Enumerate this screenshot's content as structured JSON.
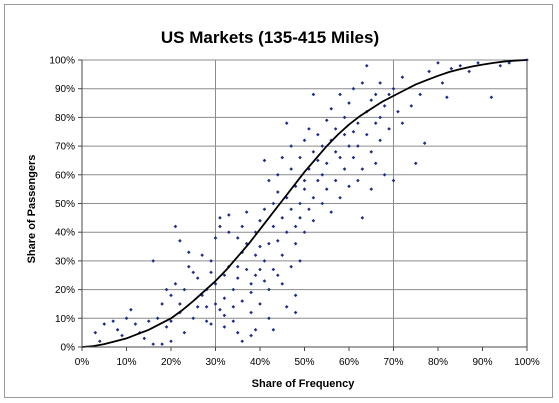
{
  "chart_data": {
    "type": "scatter",
    "title": "US Markets (135-415 Miles)",
    "xlabel": "Share of Frequency",
    "ylabel": "Share of Passengers",
    "xlim": [
      0,
      100
    ],
    "ylim": [
      0,
      100
    ],
    "x_ticks": [
      "0%",
      "10%",
      "20%",
      "30%",
      "40%",
      "50%",
      "60%",
      "70%",
      "80%",
      "90%",
      "100%"
    ],
    "y_ticks": [
      "0%",
      "10%",
      "20%",
      "30%",
      "40%",
      "50%",
      "60%",
      "70%",
      "80%",
      "90%",
      "100%"
    ],
    "grid": "horizontal lines at every 10%, vertical lines at 30% and 70%",
    "legend": "none",
    "colors": {
      "points": "#1f2d8a",
      "curve": "#000000",
      "grid": "#8c8c8c"
    },
    "series": [
      {
        "type": "scatter",
        "points": [
          [
            3,
            5
          ],
          [
            4,
            2
          ],
          [
            5,
            8
          ],
          [
            7,
            9
          ],
          [
            8,
            6
          ],
          [
            9,
            4
          ],
          [
            10,
            10
          ],
          [
            11,
            13
          ],
          [
            12,
            8
          ],
          [
            13,
            5
          ],
          [
            14,
            3
          ],
          [
            15,
            9
          ],
          [
            16,
            1
          ],
          [
            16,
            30
          ],
          [
            17,
            10
          ],
          [
            18,
            15
          ],
          [
            18,
            1
          ],
          [
            19,
            7
          ],
          [
            19,
            20
          ],
          [
            20,
            18
          ],
          [
            20,
            9
          ],
          [
            20,
            2
          ],
          [
            21,
            42
          ],
          [
            21,
            22
          ],
          [
            22,
            15
          ],
          [
            22,
            37
          ],
          [
            22,
            12
          ],
          [
            23,
            5
          ],
          [
            23,
            20
          ],
          [
            24,
            28
          ],
          [
            24,
            33
          ],
          [
            25,
            10
          ],
          [
            25,
            26
          ],
          [
            26,
            14
          ],
          [
            26,
            24
          ],
          [
            27,
            18
          ],
          [
            27,
            32
          ],
          [
            28,
            9
          ],
          [
            28,
            20
          ],
          [
            28,
            14
          ],
          [
            29,
            26
          ],
          [
            29,
            30
          ],
          [
            29,
            8
          ],
          [
            30,
            38
          ],
          [
            30,
            15
          ],
          [
            30,
            22
          ],
          [
            31,
            13
          ],
          [
            31,
            45
          ],
          [
            31,
            42
          ],
          [
            32,
            17
          ],
          [
            32,
            25
          ],
          [
            32,
            11
          ],
          [
            32,
            7
          ],
          [
            33,
            28
          ],
          [
            33,
            40
          ],
          [
            33,
            46
          ],
          [
            34,
            20
          ],
          [
            34,
            14
          ],
          [
            34,
            9
          ],
          [
            35,
            28
          ],
          [
            35,
            38
          ],
          [
            35,
            24
          ],
          [
            35,
            5
          ],
          [
            36,
            42
          ],
          [
            36,
            33
          ],
          [
            36,
            16
          ],
          [
            36,
            2
          ],
          [
            37,
            47
          ],
          [
            37,
            36
          ],
          [
            37,
            27
          ],
          [
            38,
            12
          ],
          [
            38,
            22
          ],
          [
            38,
            19
          ],
          [
            38,
            4
          ],
          [
            39,
            40
          ],
          [
            39,
            32
          ],
          [
            39,
            25
          ],
          [
            39,
            6
          ],
          [
            40,
            44
          ],
          [
            40,
            27
          ],
          [
            40,
            35
          ],
          [
            40,
            15
          ],
          [
            41,
            23
          ],
          [
            41,
            48
          ],
          [
            41,
            30
          ],
          [
            41,
            65
          ],
          [
            42,
            58
          ],
          [
            42,
            36
          ],
          [
            42,
            20
          ],
          [
            42,
            10
          ],
          [
            43,
            50
          ],
          [
            43,
            42
          ],
          [
            43,
            27
          ],
          [
            43,
            6
          ],
          [
            44,
            37
          ],
          [
            44,
            54
          ],
          [
            44,
            60
          ],
          [
            44,
            25
          ],
          [
            45,
            32
          ],
          [
            45,
            45
          ],
          [
            45,
            22
          ],
          [
            45,
            66
          ],
          [
            46,
            78
          ],
          [
            46,
            40
          ],
          [
            46,
            52
          ],
          [
            46,
            14
          ],
          [
            47,
            28
          ],
          [
            47,
            48
          ],
          [
            47,
            62
          ],
          [
            47,
            70
          ],
          [
            48,
            36
          ],
          [
            48,
            18
          ],
          [
            48,
            56
          ],
          [
            48,
            42
          ],
          [
            48,
            12
          ],
          [
            49,
            30
          ],
          [
            49,
            50
          ],
          [
            49,
            66
          ],
          [
            49,
            45
          ],
          [
            50,
            72
          ],
          [
            50,
            58
          ],
          [
            50,
            40
          ],
          [
            50,
            55
          ],
          [
            51,
            76
          ],
          [
            51,
            62
          ],
          [
            51,
            48
          ],
          [
            52,
            88
          ],
          [
            52,
            68
          ],
          [
            52,
            52
          ],
          [
            52,
            44
          ],
          [
            53,
            65
          ],
          [
            53,
            58
          ],
          [
            53,
            74
          ],
          [
            54,
            70
          ],
          [
            54,
            50
          ],
          [
            54,
            60
          ],
          [
            55,
            79
          ],
          [
            55,
            64
          ],
          [
            55,
            55
          ],
          [
            56,
            72
          ],
          [
            56,
            83
          ],
          [
            56,
            47
          ],
          [
            57,
            68
          ],
          [
            57,
            58
          ],
          [
            57,
            76
          ],
          [
            58,
            88
          ],
          [
            58,
            66
          ],
          [
            58,
            52
          ],
          [
            59,
            74
          ],
          [
            59,
            80
          ],
          [
            59,
            62
          ],
          [
            60,
            70
          ],
          [
            60,
            56
          ],
          [
            60,
            85
          ],
          [
            61,
            66
          ],
          [
            61,
            90
          ],
          [
            61,
            75
          ],
          [
            62,
            58
          ],
          [
            62,
            78
          ],
          [
            62,
            70
          ],
          [
            63,
            92
          ],
          [
            63,
            45
          ],
          [
            63,
            62
          ],
          [
            64,
            82
          ],
          [
            64,
            74
          ],
          [
            64,
            98
          ],
          [
            65,
            68
          ],
          [
            65,
            86
          ],
          [
            65,
            55
          ],
          [
            66,
            78
          ],
          [
            66,
            88
          ],
          [
            66,
            64
          ],
          [
            67,
            80
          ],
          [
            67,
            72
          ],
          [
            67,
            92
          ],
          [
            68,
            84
          ],
          [
            68,
            60
          ],
          [
            69,
            88
          ],
          [
            69,
            76
          ],
          [
            70,
            90
          ],
          [
            70,
            58
          ],
          [
            71,
            82
          ],
          [
            72,
            94
          ],
          [
            72,
            78
          ],
          [
            74,
            84
          ],
          [
            75,
            64
          ],
          [
            76,
            88
          ],
          [
            77,
            71
          ],
          [
            78,
            96
          ],
          [
            80,
            99
          ],
          [
            81,
            92
          ],
          [
            82,
            87
          ],
          [
            83,
            97
          ],
          [
            85,
            98
          ],
          [
            87,
            96
          ],
          [
            89,
            99
          ],
          [
            92,
            87
          ],
          [
            94,
            98
          ],
          [
            96,
            99
          ],
          [
            100,
            100
          ]
        ]
      },
      {
        "type": "line",
        "points": [
          [
            0,
            0
          ],
          [
            2.5,
            0.3
          ],
          [
            5,
            1
          ],
          [
            7.5,
            2
          ],
          [
            10,
            3
          ],
          [
            12.5,
            4.5
          ],
          [
            15,
            6
          ],
          [
            17.5,
            8
          ],
          [
            20,
            10
          ],
          [
            22.5,
            12.8
          ],
          [
            25,
            16
          ],
          [
            27.5,
            19.5
          ],
          [
            30,
            23
          ],
          [
            32.5,
            27
          ],
          [
            35,
            31.5
          ],
          [
            37.5,
            36
          ],
          [
            40,
            41
          ],
          [
            42.5,
            46
          ],
          [
            45,
            51
          ],
          [
            47.5,
            56
          ],
          [
            50,
            61
          ],
          [
            52.5,
            65.5
          ],
          [
            55,
            70
          ],
          [
            57.5,
            74
          ],
          [
            60,
            77.5
          ],
          [
            62.5,
            80.5
          ],
          [
            65,
            83
          ],
          [
            67.5,
            85.5
          ],
          [
            70,
            87.5
          ],
          [
            72.5,
            89.5
          ],
          [
            75,
            91.5
          ],
          [
            77.5,
            93
          ],
          [
            80,
            94.5
          ],
          [
            82.5,
            95.8
          ],
          [
            85,
            96.8
          ],
          [
            87.5,
            97.7
          ],
          [
            90,
            98.4
          ],
          [
            92.5,
            99
          ],
          [
            95,
            99.5
          ],
          [
            97.5,
            99.8
          ],
          [
            100,
            100
          ]
        ]
      }
    ]
  }
}
